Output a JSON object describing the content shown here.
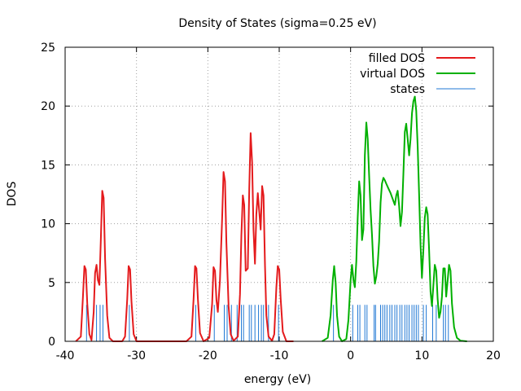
{
  "chart_data": {
    "type": "line",
    "title": "Density of States (sigma=0.25 eV)",
    "xlabel": "energy (eV)",
    "ylabel": "DOS",
    "xlim": [
      -40,
      20
    ],
    "ylim": [
      0,
      25
    ],
    "xticks": [
      -40,
      -30,
      -20,
      -10,
      0,
      10,
      20
    ],
    "yticks": [
      0,
      5,
      10,
      15,
      20,
      25
    ],
    "grid": true,
    "legend_position": "top-right",
    "series": [
      {
        "name": "filled DOS",
        "color": "#e41a1c",
        "points": [
          [
            -38.5,
            0
          ],
          [
            -37.8,
            0.4
          ],
          [
            -37.5,
            3.8
          ],
          [
            -37.3,
            6.4
          ],
          [
            -37.1,
            6.1
          ],
          [
            -36.9,
            3.2
          ],
          [
            -36.6,
            0.6
          ],
          [
            -36.3,
            0.1
          ],
          [
            -36.0,
            2.5
          ],
          [
            -35.8,
            5.8
          ],
          [
            -35.6,
            6.5
          ],
          [
            -35.4,
            5.2
          ],
          [
            -35.2,
            4.8
          ],
          [
            -35.0,
            8.5
          ],
          [
            -34.8,
            12.8
          ],
          [
            -34.6,
            12.2
          ],
          [
            -34.4,
            7.0
          ],
          [
            -34.1,
            2.2
          ],
          [
            -33.8,
            0.3
          ],
          [
            -33.3,
            0
          ],
          [
            -32.0,
            0
          ],
          [
            -31.6,
            0.4
          ],
          [
            -31.3,
            3.6
          ],
          [
            -31.1,
            6.4
          ],
          [
            -30.9,
            6.1
          ],
          [
            -30.7,
            3.4
          ],
          [
            -30.4,
            0.6
          ],
          [
            -30.0,
            0
          ],
          [
            -23.0,
            0
          ],
          [
            -22.3,
            0.4
          ],
          [
            -22.0,
            3.6
          ],
          [
            -21.8,
            6.4
          ],
          [
            -21.6,
            6.2
          ],
          [
            -21.4,
            3.6
          ],
          [
            -21.1,
            0.7
          ],
          [
            -20.6,
            0
          ],
          [
            -19.8,
            0.3
          ],
          [
            -19.4,
            3.2
          ],
          [
            -19.2,
            6.3
          ],
          [
            -19.0,
            6.0
          ],
          [
            -18.8,
            3.5
          ],
          [
            -18.6,
            2.5
          ],
          [
            -18.3,
            5.2
          ],
          [
            -18.0,
            10.5
          ],
          [
            -17.8,
            14.4
          ],
          [
            -17.6,
            13.6
          ],
          [
            -17.4,
            8.4
          ],
          [
            -17.1,
            3.0
          ],
          [
            -16.8,
            0.6
          ],
          [
            -16.4,
            0.05
          ],
          [
            -15.8,
            0.4
          ],
          [
            -15.5,
            4.0
          ],
          [
            -15.3,
            9.0
          ],
          [
            -15.1,
            12.4
          ],
          [
            -14.9,
            11.6
          ],
          [
            -14.7,
            6.0
          ],
          [
            -14.4,
            6.2
          ],
          [
            -14.2,
            13.0
          ],
          [
            -14.0,
            17.7
          ],
          [
            -13.8,
            15.2
          ],
          [
            -13.6,
            9.5
          ],
          [
            -13.4,
            6.6
          ],
          [
            -13.2,
            10.8
          ],
          [
            -13.0,
            12.6
          ],
          [
            -12.8,
            11.0
          ],
          [
            -12.6,
            9.5
          ],
          [
            -12.4,
            13.2
          ],
          [
            -12.2,
            12.4
          ],
          [
            -12.0,
            6.5
          ],
          [
            -11.8,
            2.2
          ],
          [
            -11.5,
            0.4
          ],
          [
            -11.0,
            0.05
          ],
          [
            -10.7,
            0.6
          ],
          [
            -10.4,
            4.6
          ],
          [
            -10.2,
            6.4
          ],
          [
            -10.0,
            6.1
          ],
          [
            -9.8,
            3.6
          ],
          [
            -9.5,
            0.8
          ],
          [
            -9.0,
            0
          ],
          [
            -8.0,
            0
          ]
        ]
      },
      {
        "name": "virtual DOS",
        "color": "#00b000",
        "points": [
          [
            -4.0,
            0
          ],
          [
            -3.2,
            0.3
          ],
          [
            -2.8,
            2.2
          ],
          [
            -2.5,
            5.2
          ],
          [
            -2.3,
            6.4
          ],
          [
            -2.1,
            5.0
          ],
          [
            -1.9,
            2.2
          ],
          [
            -1.6,
            0.4
          ],
          [
            -1.2,
            0
          ],
          [
            -0.6,
            0.2
          ],
          [
            -0.3,
            1.8
          ],
          [
            0.0,
            5.2
          ],
          [
            0.2,
            6.5
          ],
          [
            0.4,
            5.2
          ],
          [
            0.6,
            4.6
          ],
          [
            0.8,
            6.8
          ],
          [
            1.0,
            10.5
          ],
          [
            1.2,
            13.6
          ],
          [
            1.4,
            12.4
          ],
          [
            1.6,
            8.6
          ],
          [
            1.8,
            9.5
          ],
          [
            2.0,
            15.8
          ],
          [
            2.2,
            18.6
          ],
          [
            2.4,
            17.2
          ],
          [
            2.6,
            14.0
          ],
          [
            2.8,
            11.2
          ],
          [
            3.0,
            9.0
          ],
          [
            3.2,
            6.4
          ],
          [
            3.4,
            4.9
          ],
          [
            3.6,
            5.5
          ],
          [
            3.8,
            6.6
          ],
          [
            4.0,
            8.5
          ],
          [
            4.2,
            11.8
          ],
          [
            4.4,
            13.4
          ],
          [
            4.6,
            13.9
          ],
          [
            4.8,
            13.7
          ],
          [
            5.0,
            13.4
          ],
          [
            5.3,
            13.0
          ],
          [
            5.6,
            12.6
          ],
          [
            5.9,
            12.1
          ],
          [
            6.2,
            11.6
          ],
          [
            6.4,
            12.4
          ],
          [
            6.6,
            12.8
          ],
          [
            6.8,
            11.5
          ],
          [
            7.0,
            9.8
          ],
          [
            7.2,
            11.0
          ],
          [
            7.4,
            14.2
          ],
          [
            7.6,
            17.8
          ],
          [
            7.8,
            18.5
          ],
          [
            8.0,
            17.2
          ],
          [
            8.2,
            15.8
          ],
          [
            8.4,
            17.2
          ],
          [
            8.6,
            19.4
          ],
          [
            8.8,
            20.4
          ],
          [
            9.0,
            20.8
          ],
          [
            9.2,
            19.6
          ],
          [
            9.4,
            16.5
          ],
          [
            9.6,
            12.6
          ],
          [
            9.8,
            8.2
          ],
          [
            10.0,
            5.4
          ],
          [
            10.2,
            7.8
          ],
          [
            10.4,
            10.5
          ],
          [
            10.6,
            11.4
          ],
          [
            10.8,
            10.8
          ],
          [
            11.0,
            7.8
          ],
          [
            11.2,
            4.2
          ],
          [
            11.4,
            3.0
          ],
          [
            11.6,
            4.8
          ],
          [
            11.8,
            6.5
          ],
          [
            12.0,
            6.0
          ],
          [
            12.2,
            3.6
          ],
          [
            12.4,
            2.0
          ],
          [
            12.6,
            2.5
          ],
          [
            12.8,
            3.8
          ],
          [
            13.0,
            6.2
          ],
          [
            13.2,
            6.2
          ],
          [
            13.4,
            3.8
          ],
          [
            13.6,
            5.2
          ],
          [
            13.8,
            6.5
          ],
          [
            14.0,
            6.0
          ],
          [
            14.2,
            3.2
          ],
          [
            14.5,
            1.2
          ],
          [
            14.9,
            0.3
          ],
          [
            15.4,
            0.05
          ],
          [
            16.3,
            0
          ]
        ]
      },
      {
        "name": "states",
        "color": "#1f77d4",
        "stick_height": 3.1,
        "positions": [
          -37.0,
          -35.6,
          -35.1,
          -34.7,
          -31.0,
          -21.7,
          -19.1,
          -17.7,
          -17.3,
          -16.7,
          -15.9,
          -15.3,
          -15.0,
          -14.2,
          -13.9,
          -13.4,
          -12.9,
          -12.5,
          -12.2,
          -11.5,
          -10.1,
          -2.4,
          0.3,
          1.0,
          1.3,
          2.0,
          2.3,
          3.3,
          3.5,
          4.2,
          4.5,
          4.8,
          5.1,
          5.5,
          5.8,
          6.2,
          6.5,
          6.9,
          7.2,
          7.6,
          7.9,
          8.2,
          8.6,
          8.9,
          9.2,
          9.5,
          10.2,
          10.6,
          11.5,
          12.0,
          13.0,
          13.3,
          13.7
        ]
      }
    ]
  }
}
